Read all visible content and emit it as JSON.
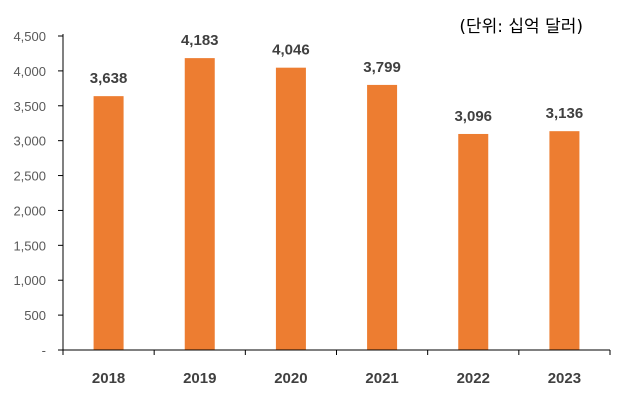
{
  "chart_data": {
    "type": "bar",
    "unit_note": "(단위: 십억 달러)",
    "categories": [
      "2018",
      "2019",
      "2020",
      "2021",
      "2022",
      "2023"
    ],
    "values": [
      3638,
      4183,
      4046,
      3799,
      3096,
      3136
    ],
    "value_labels": [
      "3,638",
      "4,183",
      "4,046",
      "3,799",
      "3,096",
      "3,136"
    ],
    "ylim": [
      0,
      4500
    ],
    "yticks": [
      0,
      500,
      1000,
      1500,
      2000,
      2500,
      3000,
      3500,
      4000,
      4500
    ],
    "ytick_labels": [
      "-",
      "500",
      "1,000",
      "1,500",
      "2,000",
      "2,500",
      "3,000",
      "3,500",
      "4,000",
      "4,500"
    ],
    "grid": false,
    "bar_color": "#ED7D31",
    "axis_color": "#000000"
  }
}
